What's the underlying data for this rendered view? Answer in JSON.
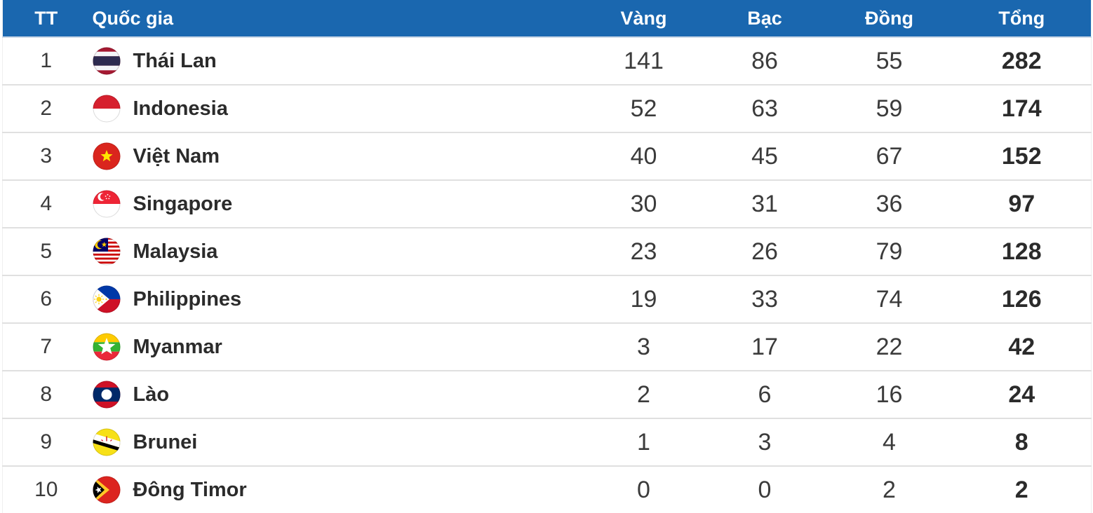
{
  "medal_table": {
    "columns": {
      "rank": "TT",
      "country": "Quốc gia",
      "gold": "Vàng",
      "silver": "Bạc",
      "bronze": "Đồng",
      "total": "Tổng"
    },
    "rows": [
      {
        "rank": "1",
        "country": "Thái Lan",
        "flag_icon": "flag-thailand-icon",
        "gold": "141",
        "silver": "86",
        "bronze": "55",
        "total": "282"
      },
      {
        "rank": "2",
        "country": "Indonesia",
        "flag_icon": "flag-indonesia-icon",
        "gold": "52",
        "silver": "63",
        "bronze": "59",
        "total": "174"
      },
      {
        "rank": "3",
        "country": "Việt Nam",
        "flag_icon": "flag-vietnam-icon",
        "gold": "40",
        "silver": "45",
        "bronze": "67",
        "total": "152"
      },
      {
        "rank": "4",
        "country": "Singapore",
        "flag_icon": "flag-singapore-icon",
        "gold": "30",
        "silver": "31",
        "bronze": "36",
        "total": "97"
      },
      {
        "rank": "5",
        "country": "Malaysia",
        "flag_icon": "flag-malaysia-icon",
        "gold": "23",
        "silver": "26",
        "bronze": "79",
        "total": "128"
      },
      {
        "rank": "6",
        "country": "Philippines",
        "flag_icon": "flag-philippines-icon",
        "gold": "19",
        "silver": "33",
        "bronze": "74",
        "total": "126"
      },
      {
        "rank": "7",
        "country": "Myanmar",
        "flag_icon": "flag-myanmar-icon",
        "gold": "3",
        "silver": "17",
        "bronze": "22",
        "total": "42"
      },
      {
        "rank": "8",
        "country": "Lào",
        "flag_icon": "flag-laos-icon",
        "gold": "2",
        "silver": "6",
        "bronze": "16",
        "total": "24"
      },
      {
        "rank": "9",
        "country": "Brunei",
        "flag_icon": "flag-brunei-icon",
        "gold": "1",
        "silver": "3",
        "bronze": "4",
        "total": "8"
      },
      {
        "rank": "10",
        "country": "Đông Timor",
        "flag_icon": "flag-east-timor-icon",
        "gold": "0",
        "silver": "0",
        "bronze": "2",
        "total": "2"
      }
    ],
    "colors": {
      "header_bg": "#1A67AF",
      "header_text": "#FFFFFF",
      "row_bg": "#FFFFFF",
      "row_divider": "#E0E0E0",
      "header_divider": "#CBD8E8",
      "text_regular": "#3B3B3B",
      "text_bold": "#2B2B2B"
    }
  }
}
